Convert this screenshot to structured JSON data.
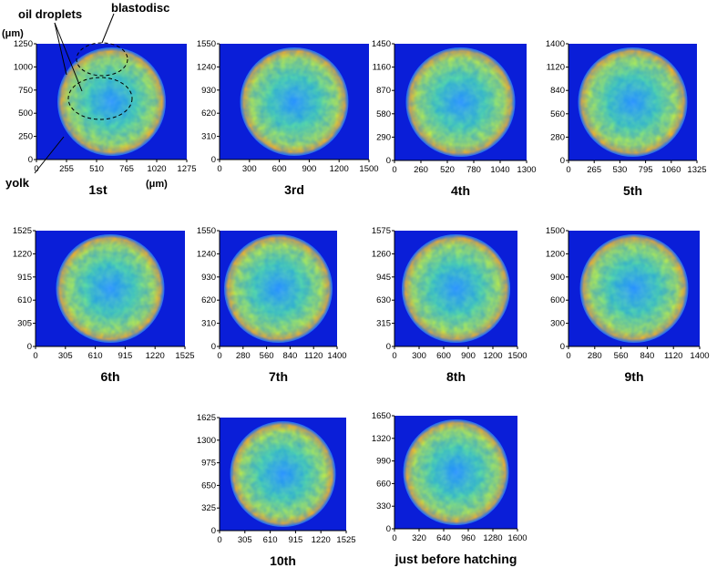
{
  "annotations": {
    "y_unit": "(μm)",
    "x_unit": "(μm)",
    "oil": "oil droplets",
    "blastodisc": "blastodisc",
    "yolk": "yolk"
  },
  "panels": [
    {
      "label": "1st",
      "xticks": [
        0,
        255,
        510,
        765,
        1020,
        1275
      ],
      "yticks": [
        0,
        250,
        500,
        750,
        1000,
        1250
      ]
    },
    {
      "label": "3rd",
      "xticks": [
        0,
        300,
        600,
        900,
        1200,
        1500
      ],
      "yticks": [
        0,
        310,
        620,
        930,
        1240,
        1550
      ]
    },
    {
      "label": "4th",
      "xticks": [
        0,
        260,
        520,
        780,
        1040,
        1300
      ],
      "yticks": [
        0,
        290,
        580,
        870,
        1160,
        1450
      ]
    },
    {
      "label": "5th",
      "xticks": [
        0,
        265,
        530,
        795,
        1060,
        1325
      ],
      "yticks": [
        0,
        280,
        560,
        840,
        1120,
        1400
      ]
    },
    {
      "label": "6th",
      "xticks": [
        0,
        305,
        610,
        915,
        1220,
        1525
      ],
      "yticks": [
        0,
        305,
        610,
        915,
        1220,
        1525
      ]
    },
    {
      "label": "7th",
      "xticks": [
        0,
        280,
        560,
        840,
        1120,
        1400
      ],
      "yticks": [
        0,
        310,
        620,
        930,
        1240,
        1550
      ]
    },
    {
      "label": "8th",
      "xticks": [
        0,
        300,
        600,
        900,
        1200,
        1500
      ],
      "yticks": [
        0,
        315,
        630,
        945,
        1260,
        1575
      ]
    },
    {
      "label": "9th",
      "xticks": [
        0,
        280,
        560,
        840,
        1120,
        1400
      ],
      "yticks": [
        0,
        300,
        600,
        900,
        1200,
        1500
      ]
    },
    {
      "label": "10th",
      "xticks": [
        0,
        305,
        610,
        915,
        1220,
        1525
      ],
      "yticks": [
        0,
        325,
        650,
        975,
        1300,
        1625
      ]
    },
    {
      "label": "just before hatching",
      "xticks": [
        0,
        320,
        640,
        960,
        1280,
        1600
      ],
      "yticks": [
        0,
        330,
        660,
        990,
        1320,
        1650
      ]
    }
  ]
}
